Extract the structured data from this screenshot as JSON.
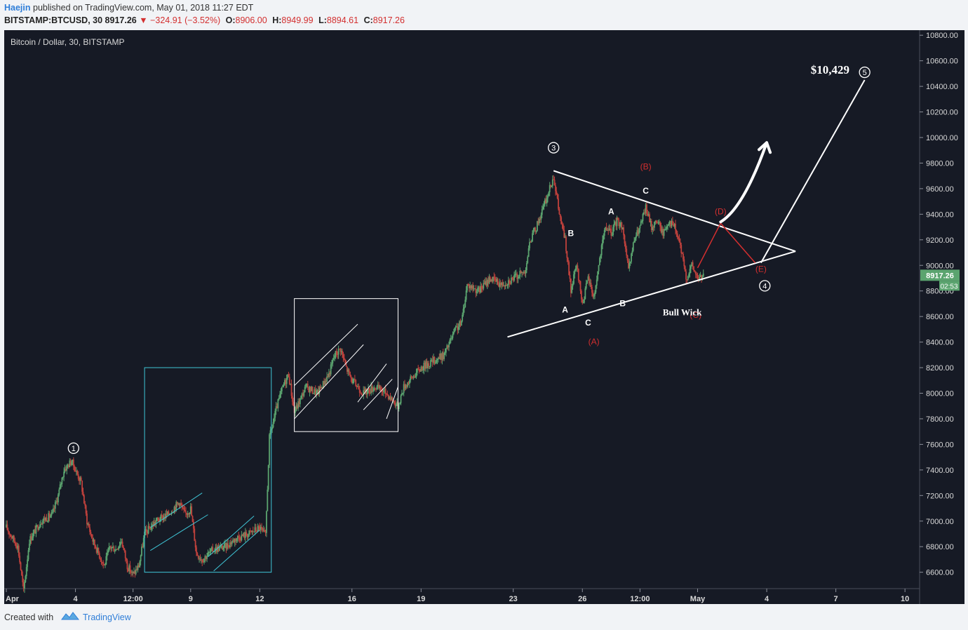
{
  "header": {
    "author": "Haejin",
    "published_text": "published on TradingView.com, May 01, 2018 11:27 EDT",
    "symbol_interval": "BITSTAMP:BTCUSD, 30",
    "last_price": "8917.26",
    "change": "−324.91 (−3.52%)",
    "open_label": "O:",
    "open_value": "8906.00",
    "high_label": "H:",
    "high_value": "8949.99",
    "low_label": "L:",
    "low_value": "8894.61",
    "close_label": "C:",
    "close_value": "8917.26"
  },
  "chart_data": {
    "type": "candlestick",
    "title": "Bitcoin / Dollar, 30, BITSTAMP",
    "y_axis": {
      "min": 6500,
      "max": 10800,
      "ticks": [
        "6600.00",
        "6800.00",
        "7000.00",
        "7200.00",
        "7400.00",
        "7600.00",
        "7800.00",
        "8000.00",
        "8200.00",
        "8400.00",
        "8600.00",
        "8800.00",
        "9000.00",
        "9200.00",
        "9400.00",
        "9600.00",
        "9800.00",
        "10000.00",
        "10200.00",
        "10400.00",
        "10600.00",
        "10800.00"
      ]
    },
    "x_axis": {
      "start": "2018-04-01",
      "end": "2018-05-10",
      "ticks": [
        {
          "t": "2018-04-01T00:00",
          "label": "Apr"
        },
        {
          "t": "2018-04-04T00:00",
          "label": "4"
        },
        {
          "t": "2018-04-06T12:00",
          "label": "12:00"
        },
        {
          "t": "2018-04-09T00:00",
          "label": "9"
        },
        {
          "t": "2018-04-12T00:00",
          "label": "12"
        },
        {
          "t": "2018-04-16T00:00",
          "label": "16"
        },
        {
          "t": "2018-04-19T00:00",
          "label": "19"
        },
        {
          "t": "2018-04-23T00:00",
          "label": "23"
        },
        {
          "t": "2018-04-26T00:00",
          "label": "26"
        },
        {
          "t": "2018-04-28T12:00",
          "label": "12:00"
        },
        {
          "t": "2018-05-01T00:00",
          "label": "May"
        },
        {
          "t": "2018-05-04T00:00",
          "label": "4"
        },
        {
          "t": "2018-05-07T00:00",
          "label": "7"
        },
        {
          "t": "2018-05-10T00:00",
          "label": "10"
        }
      ]
    },
    "price_path": [
      [
        "2018-04-01T00:00",
        6950
      ],
      [
        "2018-04-01T12:00",
        6800
      ],
      [
        "2018-04-01T18:00",
        6450
      ],
      [
        "2018-04-02T00:00",
        6850
      ],
      [
        "2018-04-02T12:00",
        7000
      ],
      [
        "2018-04-03T00:00",
        7050
      ],
      [
        "2018-04-03T06:00",
        7200
      ],
      [
        "2018-04-03T12:00",
        7400
      ],
      [
        "2018-04-03T20:00",
        7470
      ],
      [
        "2018-04-04T00:00",
        7400
      ],
      [
        "2018-04-04T06:00",
        7300
      ],
      [
        "2018-04-04T12:00",
        7000
      ],
      [
        "2018-04-04T18:00",
        6850
      ],
      [
        "2018-04-05T00:00",
        6750
      ],
      [
        "2018-04-05T06:00",
        6650
      ],
      [
        "2018-04-05T12:00",
        6800
      ],
      [
        "2018-04-05T18:00",
        6780
      ],
      [
        "2018-04-06T00:00",
        6850
      ],
      [
        "2018-04-06T06:00",
        6650
      ],
      [
        "2018-04-06T12:00",
        6580
      ],
      [
        "2018-04-06T18:00",
        6650
      ],
      [
        "2018-04-07T00:00",
        6900
      ],
      [
        "2018-04-07T12:00",
        7000
      ],
      [
        "2018-04-08T00:00",
        7050
      ],
      [
        "2018-04-08T12:00",
        7150
      ],
      [
        "2018-04-08T18:00",
        7050
      ],
      [
        "2018-04-09T00:00",
        7100
      ],
      [
        "2018-04-09T06:00",
        6750
      ],
      [
        "2018-04-09T12:00",
        6700
      ],
      [
        "2018-04-10T00:00",
        6780
      ],
      [
        "2018-04-10T12:00",
        6800
      ],
      [
        "2018-04-11T00:00",
        6870
      ],
      [
        "2018-04-11T12:00",
        6900
      ],
      [
        "2018-04-12T00:00",
        6950
      ],
      [
        "2018-04-12T06:00",
        6880
      ],
      [
        "2018-04-12T10:00",
        7650
      ],
      [
        "2018-04-12T18:00",
        7900
      ],
      [
        "2018-04-13T00:00",
        8050
      ],
      [
        "2018-04-13T06:00",
        8150
      ],
      [
        "2018-04-13T12:00",
        7850
      ],
      [
        "2018-04-14T00:00",
        8050
      ],
      [
        "2018-04-14T12:00",
        8000
      ],
      [
        "2018-04-15T00:00",
        8150
      ],
      [
        "2018-04-15T06:00",
        8300
      ],
      [
        "2018-04-15T12:00",
        8350
      ],
      [
        "2018-04-15T18:00",
        8200
      ],
      [
        "2018-04-16T00:00",
        8100
      ],
      [
        "2018-04-16T12:00",
        8000
      ],
      [
        "2018-04-17T00:00",
        8050
      ],
      [
        "2018-04-17T12:00",
        8000
      ],
      [
        "2018-04-17T18:00",
        7950
      ],
      [
        "2018-04-18T00:00",
        7900
      ],
      [
        "2018-04-18T06:00",
        8050
      ],
      [
        "2018-04-18T12:00",
        8100
      ],
      [
        "2018-04-19T00:00",
        8200
      ],
      [
        "2018-04-19T12:00",
        8250
      ],
      [
        "2018-04-20T00:00",
        8300
      ],
      [
        "2018-04-20T12:00",
        8500
      ],
      [
        "2018-04-20T18:00",
        8550
      ],
      [
        "2018-04-21T00:00",
        8850
      ],
      [
        "2018-04-21T12:00",
        8800
      ],
      [
        "2018-04-22T00:00",
        8900
      ],
      [
        "2018-04-22T12:00",
        8850
      ],
      [
        "2018-04-23T00:00",
        8900
      ],
      [
        "2018-04-23T12:00",
        8950
      ],
      [
        "2018-04-23T18:00",
        9200
      ],
      [
        "2018-04-24T00:00",
        9300
      ],
      [
        "2018-04-24T12:00",
        9550
      ],
      [
        "2018-04-24T18:00",
        9700
      ],
      [
        "2018-04-25T00:00",
        9400
      ],
      [
        "2018-04-25T06:00",
        9200
      ],
      [
        "2018-04-25T12:00",
        8800
      ],
      [
        "2018-04-25T18:00",
        9000
      ],
      [
        "2018-04-26T00:00",
        8700
      ],
      [
        "2018-04-26T06:00",
        8900
      ],
      [
        "2018-04-26T12:00",
        8750
      ],
      [
        "2018-04-26T18:00",
        9050
      ],
      [
        "2018-04-27T00:00",
        9300
      ],
      [
        "2018-04-27T06:00",
        9250
      ],
      [
        "2018-04-27T12:00",
        9350
      ],
      [
        "2018-04-27T18:00",
        9300
      ],
      [
        "2018-04-28T00:00",
        8950
      ],
      [
        "2018-04-28T06:00",
        9200
      ],
      [
        "2018-04-28T12:00",
        9300
      ],
      [
        "2018-04-28T18:00",
        9450
      ],
      [
        "2018-04-29T00:00",
        9300
      ],
      [
        "2018-04-29T06:00",
        9350
      ],
      [
        "2018-04-29T12:00",
        9250
      ],
      [
        "2018-04-29T18:00",
        9350
      ],
      [
        "2018-04-30T00:00",
        9300
      ],
      [
        "2018-04-30T06:00",
        9150
      ],
      [
        "2018-04-30T12:00",
        8900
      ],
      [
        "2018-04-30T18:00",
        9000
      ],
      [
        "2018-05-01T00:00",
        8900
      ],
      [
        "2018-05-01T06:00",
        8917
      ]
    ],
    "last_price_label": "8917.26",
    "countdown_label": "02:53",
    "annotations": {
      "wave_labels": [
        {
          "text": "1",
          "t": "2018-04-03T22:00",
          "y": 7570,
          "style": "circle"
        },
        {
          "text": "3",
          "t": "2018-04-24T18:00",
          "y": 9920,
          "style": "circle"
        },
        {
          "text": "4",
          "t": "2018-05-03T22:00",
          "y": 8840,
          "style": "circle"
        },
        {
          "text": "5",
          "t": "2018-05-08T06:00",
          "y": 10510,
          "style": "circle"
        }
      ],
      "white_letters": [
        {
          "text": "B",
          "t": "2018-04-25T12:00",
          "y": 9230
        },
        {
          "text": "A",
          "t": "2018-04-25T06:00",
          "y": 8630
        },
        {
          "text": "C",
          "t": "2018-04-26T06:00",
          "y": 8530
        },
        {
          "text": "A",
          "t": "2018-04-27T06:00",
          "y": 9400
        },
        {
          "text": "B",
          "t": "2018-04-27T18:00",
          "y": 8680
        },
        {
          "text": "C",
          "t": "2018-04-28T18:00",
          "y": 9560
        }
      ],
      "red_letters": [
        {
          "text": "(A)",
          "t": "2018-04-26T12:00",
          "y": 8380
        },
        {
          "text": "(B)",
          "t": "2018-04-28T18:00",
          "y": 9750
        },
        {
          "text": "(C)",
          "t": "2018-04-30T22:00",
          "y": 8590
        },
        {
          "text": "(D)",
          "t": "2018-05-02T00:00",
          "y": 9400
        },
        {
          "text": "(E)",
          "t": "2018-05-03T18:00",
          "y": 8950
        }
      ],
      "price_target": {
        "text": "$10,429",
        "t": "2018-05-06T18:00",
        "y": 10500
      },
      "bull_wick": {
        "text": "Bull Wick",
        "t": "2018-04-30T08:00",
        "y": 8610
      },
      "trendlines": [
        {
          "from": [
            "2018-04-24T18:00",
            9740
          ],
          "to": [
            "2018-05-05T06:00",
            9110
          ],
          "color": "white"
        },
        {
          "from": [
            "2018-04-22T18:00",
            8440
          ],
          "to": [
            "2018-05-05T06:00",
            9110
          ],
          "color": "white"
        },
        {
          "from": [
            "2018-05-03T18:00",
            9020
          ],
          "to": [
            "2018-05-08T06:00",
            10450
          ],
          "color": "white"
        }
      ],
      "red_path": [
        [
          "2018-05-01T00:00",
          8980
        ],
        [
          "2018-05-02T00:00",
          9330
        ],
        [
          "2018-05-03T12:00",
          9020
        ]
      ],
      "arrow": [
        [
          "2018-05-02T00:00",
          9340
        ],
        [
          "2018-05-03T00:00",
          9450
        ],
        [
          "2018-05-04T00:00",
          9960
        ]
      ],
      "boxes": [
        {
          "from": [
            "2018-04-07T00:00",
            8200
          ],
          "to": [
            "2018-04-12T12:00",
            6600
          ],
          "color": "cyan"
        },
        {
          "from": [
            "2018-04-13T12:00",
            8740
          ],
          "to": [
            "2018-04-18T00:00",
            7700
          ],
          "color": "white"
        }
      ],
      "channel_lines": [
        {
          "from": [
            "2018-04-07T06:00",
            6950
          ],
          "to": [
            "2018-04-09T12:00",
            7220
          ],
          "color": "cyan"
        },
        {
          "from": [
            "2018-04-07T06:00",
            6770
          ],
          "to": [
            "2018-04-09T18:00",
            7050
          ],
          "color": "cyan"
        },
        {
          "from": [
            "2018-04-09T18:00",
            6720
          ],
          "to": [
            "2018-04-11T18:00",
            7040
          ],
          "color": "cyan"
        },
        {
          "from": [
            "2018-04-10T00:00",
            6610
          ],
          "to": [
            "2018-04-12T00:00",
            6930
          ],
          "color": "cyan"
        },
        {
          "from": [
            "2018-04-13T12:00",
            8060
          ],
          "to": [
            "2018-04-16T06:00",
            8540
          ],
          "color": "white"
        },
        {
          "from": [
            "2018-04-13T12:00",
            7800
          ],
          "to": [
            "2018-04-16T12:00",
            8380
          ],
          "color": "white"
        },
        {
          "from": [
            "2018-04-16T06:00",
            7930
          ],
          "to": [
            "2018-04-17T12:00",
            8230
          ],
          "color": "white"
        },
        {
          "from": [
            "2018-04-16T12:00",
            7870
          ],
          "to": [
            "2018-04-17T18:00",
            8110
          ],
          "color": "white"
        },
        {
          "from": [
            "2018-04-17T12:00",
            7800
          ],
          "to": [
            "2018-04-18T00:00",
            8050
          ],
          "color": "white"
        }
      ]
    }
  },
  "footer": {
    "created_with": "Created with",
    "brand": "TradingView"
  },
  "colors": {
    "background": "#161a25",
    "up": "#5ba46f",
    "down": "#c0413c",
    "axis_text": "#d9d9d9",
    "red_annotation": "#d32f2f",
    "cyan_annotation": "#3fc5d6",
    "link": "#2f7ed8"
  }
}
